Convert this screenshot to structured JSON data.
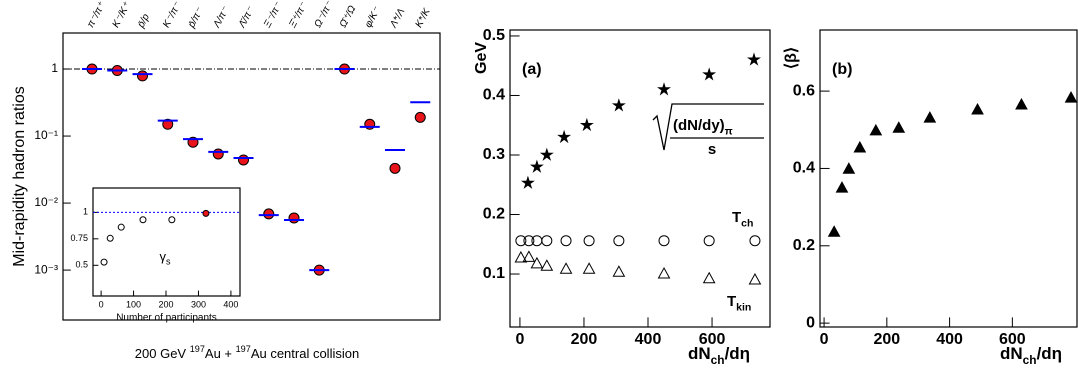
{
  "chart_data": [
    {
      "type": "dot",
      "ylabel": "Mid-rapidity hadron ratios",
      "xlabel": {
        "text": "200 GeV ",
        "sup1": "197",
        "mid": "Au + ",
        "sup2": "197",
        "end": "Au central collision"
      },
      "categories": [
        "π⁻/π⁺",
        "K⁻/K⁺",
        "p̄/p",
        "K⁻/π⁻",
        "p̄/π⁻",
        "Λ/π⁻",
        "Λ̄/π⁻",
        "Ξ⁻/π⁻",
        "Ξ̄⁺/π⁻",
        "Ω⁻/π⁻",
        "Ω̄⁺/Ω",
        "φ/K⁻",
        "Λ*/Λ",
        "K*/K"
      ],
      "series": [
        {
          "marker": "circle",
          "color": "#000000",
          "fill": "#e8141a",
          "values": [
            1.0,
            0.95,
            0.79,
            0.15,
            0.081,
            0.054,
            0.044,
            0.0069,
            0.006,
            0.001,
            1.0,
            0.15,
            0.033,
            0.19
          ]
        },
        {
          "marker": "dash",
          "color": "#0000ff",
          "values": [
            1.0,
            0.95,
            0.84,
            0.17,
            0.09,
            0.058,
            0.047,
            0.0066,
            0.0056,
            0.001,
            1.0,
            0.137,
            0.062,
            0.32
          ]
        }
      ],
      "log_y": true,
      "ylim": [
        0.00018,
        3.45
      ],
      "yticks": [
        {
          "value": 0.001,
          "label": "10⁻³"
        },
        {
          "value": 0.01,
          "label": "10⁻²"
        },
        {
          "value": 0.1,
          "label": "10⁻¹"
        },
        1
      ],
      "reference_line": 1,
      "reference_color": "#000000"
    },
    {
      "type": "scatter",
      "xlabel": "Number of participants",
      "annotation": {
        "text": "γ",
        "sub": "s"
      },
      "series": [
        {
          "marker": "circle",
          "color": "#000000",
          "fill": "none",
          "x": [
            9,
            28,
            62,
            129,
            218
          ],
          "values": [
            0.53,
            0.755,
            0.86,
            0.93,
            0.93
          ]
        },
        {
          "marker": "circle",
          "color": "#000000",
          "fill": "#e8141a",
          "x": [
            323
          ],
          "values": [
            0.99
          ]
        }
      ],
      "xlim": [
        -25,
        428
      ],
      "ylim": [
        0.21,
        1.23
      ],
      "xticks": [
        0,
        100,
        200,
        300,
        400
      ],
      "yticks": [
        0.5,
        0.75,
        1
      ],
      "reference_line": 1,
      "reference_color": "#0000ff"
    },
    {
      "type": "scatter",
      "panel_label": "(a)",
      "ylabel": "GeV",
      "xlabel": {
        "text": "dN",
        "sub": "ch",
        "end": "/dη"
      },
      "formula": {
        "numerator": "(dN/dy)",
        "sub": "π",
        "denominator": "s"
      },
      "series": [
        {
          "marker": "star",
          "color": "#000000",
          "fill": "#000000",
          "x": [
            25,
            53,
            84,
            138,
            209,
            309,
            450,
            591,
            731
          ],
          "values": [
            0.253,
            0.28,
            0.3,
            0.33,
            0.35,
            0.383,
            0.41,
            0.435,
            0.46
          ]
        },
        {
          "marker": "circle",
          "color": "#000000",
          "fill": "none",
          "label": {
            "text": "T",
            "sub": "ch"
          },
          "x": [
            3,
            28,
            53,
            84,
            144,
            216,
            309,
            450,
            591,
            734
          ],
          "values": [
            0.156,
            0.156,
            0.156,
            0.156,
            0.156,
            0.156,
            0.156,
            0.156,
            0.156,
            0.156
          ]
        },
        {
          "marker": "triangle",
          "color": "#000000",
          "fill": "none",
          "label": {
            "text": "T",
            "sub": "kin"
          },
          "x": [
            3,
            28,
            53,
            84,
            144,
            216,
            309,
            450,
            591,
            734
          ],
          "values": [
            0.127,
            0.128,
            0.117,
            0.113,
            0.108,
            0.108,
            0.103,
            0.1,
            0.092,
            0.09
          ]
        }
      ],
      "xlim": [
        -31,
        781
      ],
      "ylim": [
        0.011,
        0.51
      ],
      "xticks": [
        0,
        200,
        400,
        600
      ],
      "yticks": [
        0.1,
        0.2,
        0.3,
        0.4,
        0.5
      ]
    },
    {
      "type": "scatter",
      "panel_label": "(b)",
      "ylabel": "⟨β⟩",
      "xlabel": {
        "text": "dN",
        "sub": "ch",
        "end": "/dη"
      },
      "series": [
        {
          "marker": "triangle",
          "color": "#000000",
          "fill": "#000000",
          "x": [
            32,
            57,
            79,
            114,
            165,
            238,
            337,
            489,
            629,
            787
          ],
          "values": [
            0.235,
            0.349,
            0.398,
            0.453,
            0.497,
            0.504,
            0.53,
            0.551,
            0.564,
            0.582
          ]
        }
      ],
      "xlim": [
        -13,
        806
      ],
      "ylim": [
        -0.01,
        0.758
      ],
      "xticks": [
        0,
        200,
        400,
        600
      ],
      "yticks": [
        0,
        0.2,
        0.4,
        0.6
      ]
    }
  ]
}
